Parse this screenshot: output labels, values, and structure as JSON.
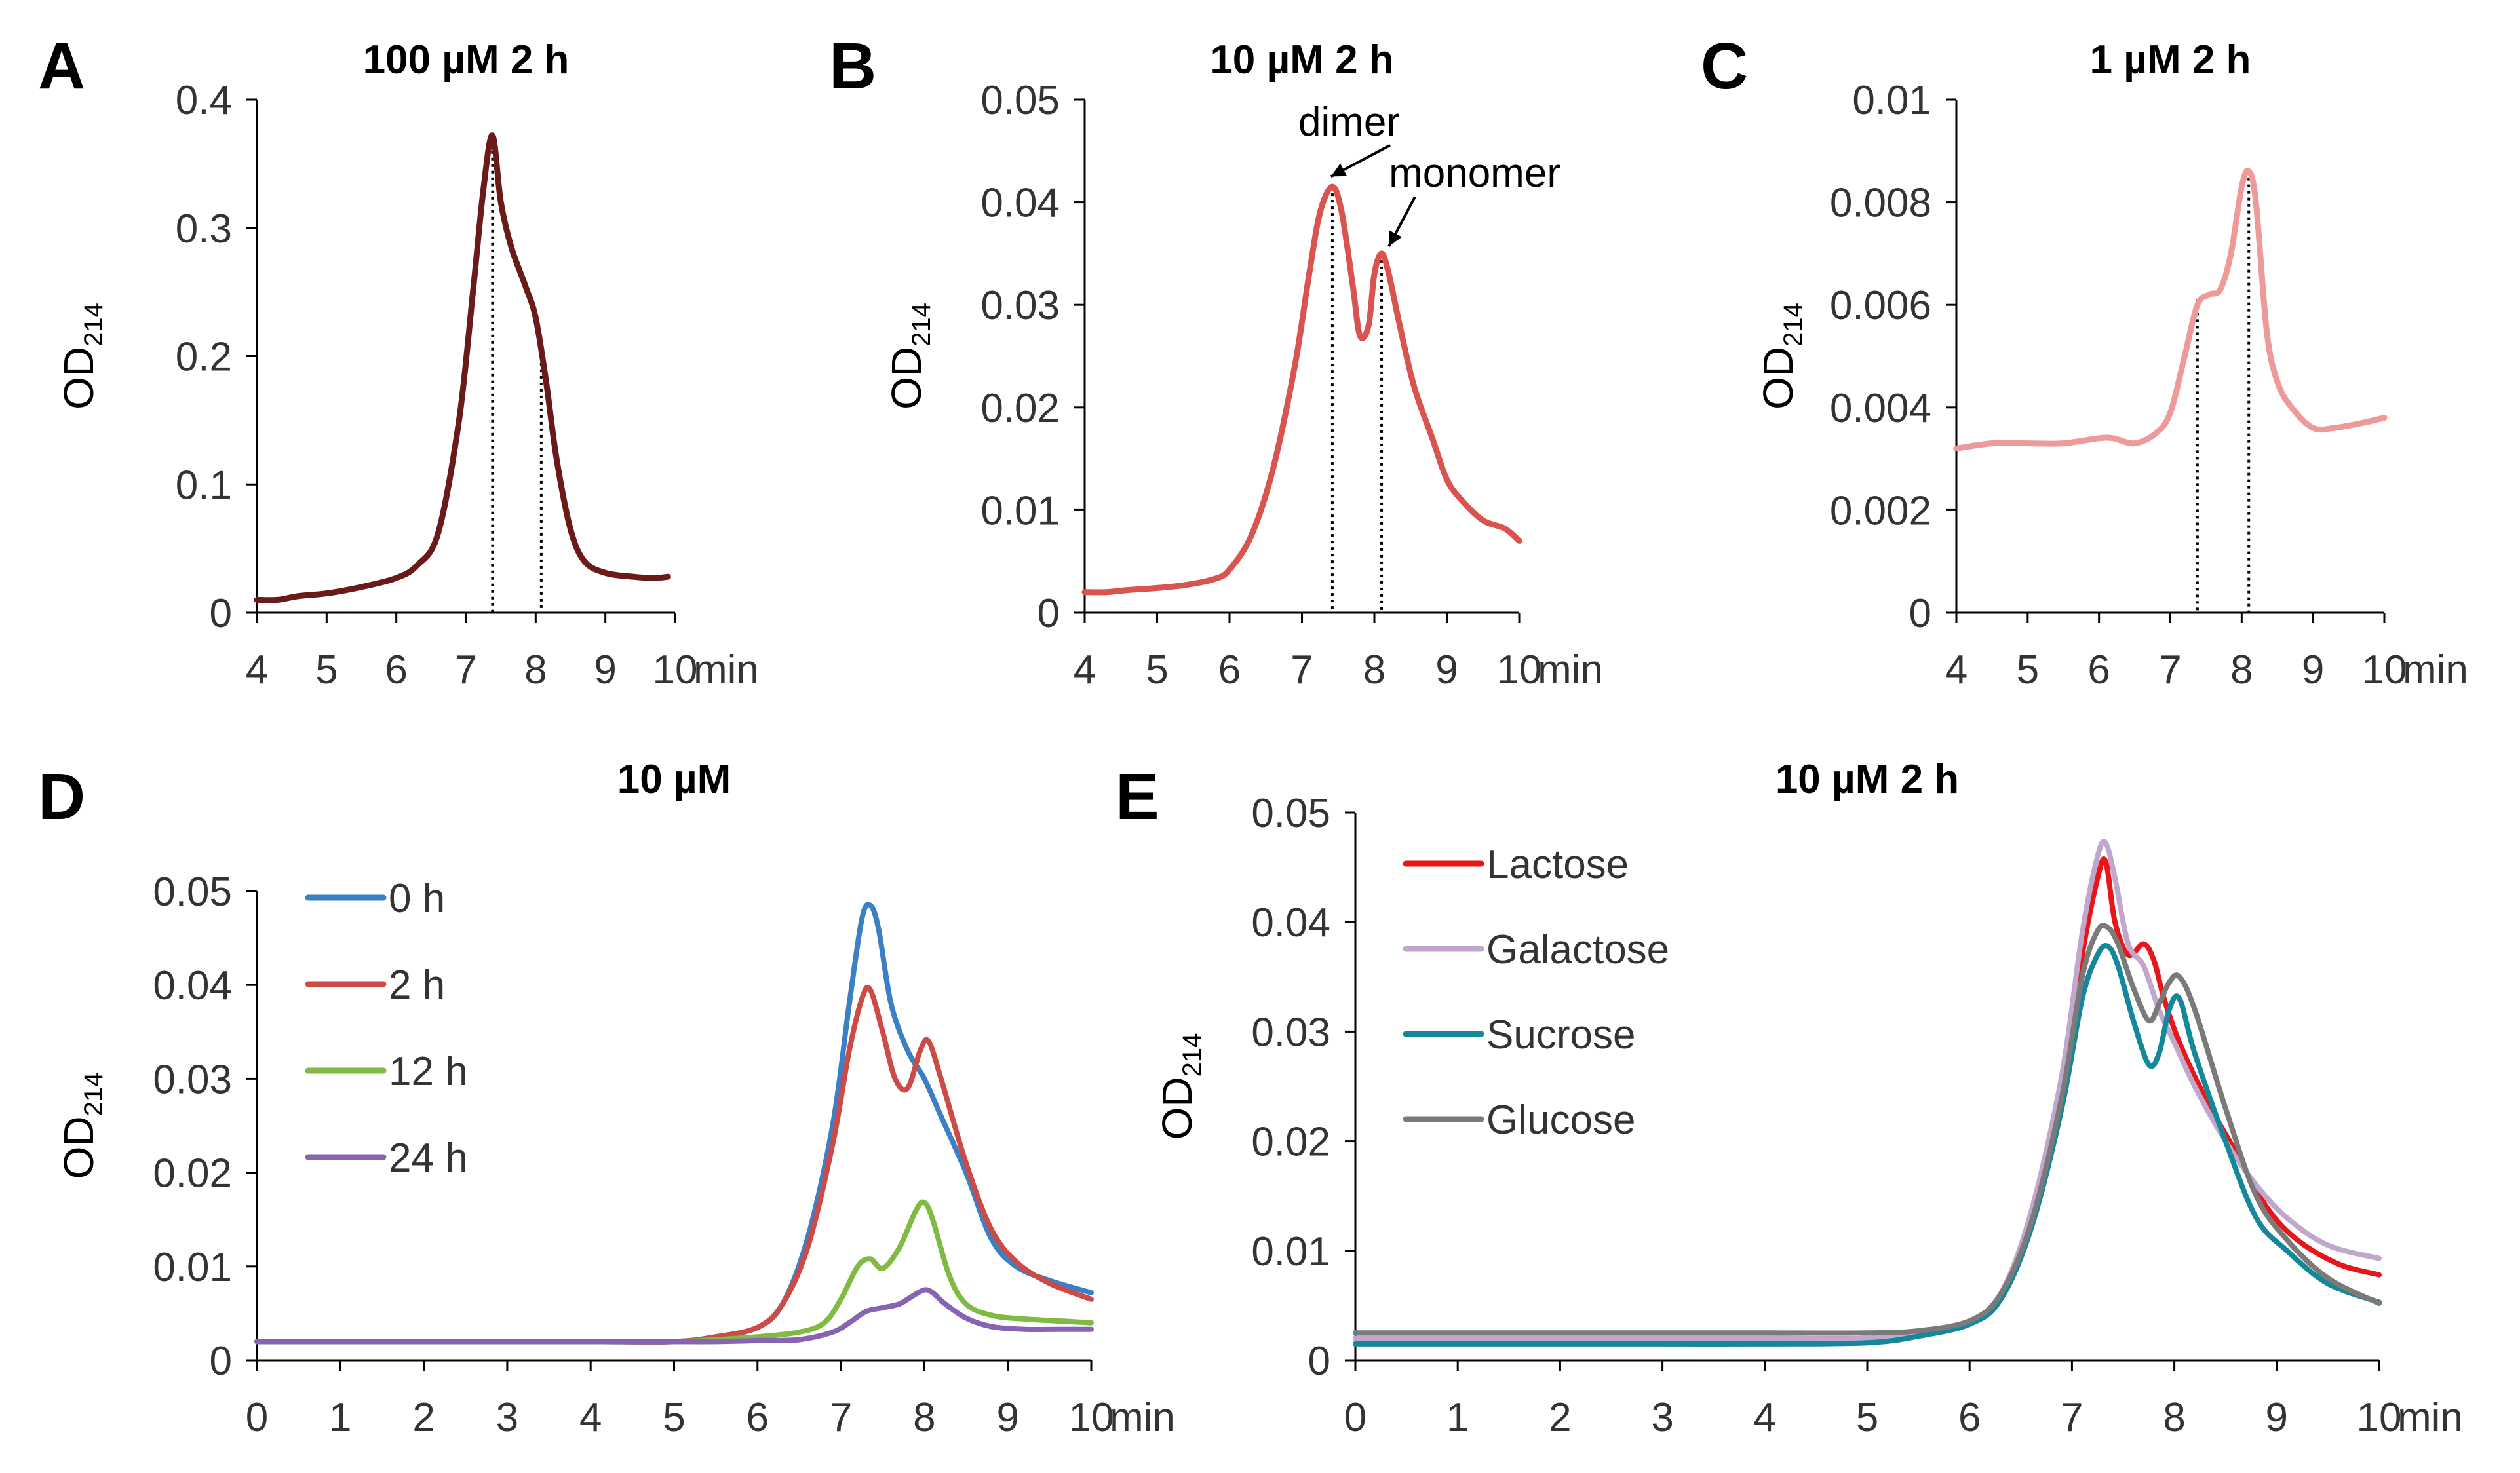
{
  "chart_data": [
    {
      "id": "A",
      "panel_label": "A",
      "type": "line",
      "title": "100 µM 2 h",
      "xlabel": "min",
      "ylabel_main": "OD",
      "ylabel_sub": "214",
      "xlim": [
        4,
        10
      ],
      "ylim": [
        0,
        0.4
      ],
      "xticks": [
        "4",
        "5",
        "6",
        "7",
        "8",
        "9",
        "10"
      ],
      "yticks": [
        "0",
        "0.1",
        "0.2",
        "0.3",
        "0.4"
      ],
      "ytick_values": [
        0,
        0.1,
        0.2,
        0.3,
        0.4
      ],
      "markers": [
        {
          "x": 7.38,
          "y": 0.37
        },
        {
          "x": 8.08,
          "y": 0.21
        }
      ],
      "annotations": [],
      "legend": false,
      "series": [
        {
          "name": "100 µM 2 h",
          "color": "#6b1a1a",
          "x": [
            4.0,
            4.3,
            4.6,
            5.0,
            5.5,
            6.0,
            6.3,
            6.6,
            6.9,
            7.1,
            7.25,
            7.38,
            7.5,
            7.65,
            7.85,
            8.0,
            8.15,
            8.3,
            8.5,
            8.7,
            9.0,
            9.4,
            9.7,
            9.9
          ],
          "y": [
            0.01,
            0.01,
            0.013,
            0.015,
            0.02,
            0.027,
            0.037,
            0.062,
            0.15,
            0.25,
            0.33,
            0.372,
            0.32,
            0.285,
            0.255,
            0.23,
            0.18,
            0.12,
            0.065,
            0.04,
            0.031,
            0.028,
            0.027,
            0.028
          ]
        }
      ]
    },
    {
      "id": "B",
      "panel_label": "B",
      "type": "line",
      "title": "10 µM 2 h",
      "xlabel": "min",
      "ylabel_main": "OD",
      "ylabel_sub": "214",
      "xlim": [
        4,
        10
      ],
      "ylim": [
        0,
        0.05
      ],
      "xticks": [
        "4",
        "5",
        "6",
        "7",
        "8",
        "9",
        "10"
      ],
      "yticks": [
        "0",
        "0.01",
        "0.02",
        "0.03",
        "0.04",
        "0.05"
      ],
      "ytick_values": [
        0,
        0.01,
        0.02,
        0.03,
        0.04,
        0.05
      ],
      "markers": [
        {
          "x": 7.42,
          "y": 0.0415
        },
        {
          "x": 8.1,
          "y": 0.035
        }
      ],
      "annotations": [
        {
          "text": "dimer",
          "tx": 6.95,
          "ty": 0.0465,
          "px": 7.4,
          "py": 0.0425
        },
        {
          "text": "monomer",
          "tx": 8.2,
          "ty": 0.0415,
          "px": 8.2,
          "py": 0.0357
        }
      ],
      "legend": false,
      "series": [
        {
          "name": "10 µM 2 h",
          "color": "#d9534f",
          "x": [
            4.0,
            4.3,
            4.6,
            5.0,
            5.4,
            5.8,
            6.0,
            6.3,
            6.6,
            6.9,
            7.1,
            7.25,
            7.42,
            7.55,
            7.7,
            7.8,
            7.92,
            8.0,
            8.1,
            8.2,
            8.35,
            8.55,
            8.8,
            9.0,
            9.2,
            9.5,
            9.8,
            10.0
          ],
          "y": [
            0.002,
            0.002,
            0.0022,
            0.0024,
            0.0027,
            0.0033,
            0.0042,
            0.0075,
            0.014,
            0.024,
            0.033,
            0.039,
            0.0415,
            0.039,
            0.032,
            0.027,
            0.028,
            0.033,
            0.035,
            0.033,
            0.028,
            0.022,
            0.017,
            0.013,
            0.011,
            0.009,
            0.0082,
            0.007
          ]
        }
      ]
    },
    {
      "id": "C",
      "panel_label": "C",
      "type": "line",
      "title": "1 µM 2 h",
      "xlabel": "min",
      "ylabel_main": "OD",
      "ylabel_sub": "214",
      "xlim": [
        4,
        10
      ],
      "ylim": [
        0,
        0.01
      ],
      "xticks": [
        "4",
        "5",
        "6",
        "7",
        "8",
        "9",
        "10"
      ],
      "yticks": [
        "0",
        "0.002",
        "0.004",
        "0.006",
        "0.008",
        "0.01"
      ],
      "ytick_values": [
        0,
        0.002,
        0.004,
        0.006,
        0.008,
        0.01
      ],
      "markers": [
        {
          "x": 7.38,
          "y": 0.0061
        },
        {
          "x": 8.1,
          "y": 0.0086
        }
      ],
      "annotations": [],
      "legend": false,
      "series": [
        {
          "name": "1 µM 2 h",
          "color": "#ee9a9a",
          "x": [
            4.0,
            4.5,
            5.0,
            5.5,
            6.0,
            6.2,
            6.5,
            6.8,
            7.0,
            7.2,
            7.38,
            7.55,
            7.7,
            7.85,
            8.0,
            8.1,
            8.2,
            8.35,
            8.5,
            8.7,
            9.0,
            9.3,
            9.7,
            10.0
          ],
          "y": [
            0.0032,
            0.0033,
            0.0033,
            0.0033,
            0.0034,
            0.0034,
            0.0033,
            0.0035,
            0.0039,
            0.005,
            0.006,
            0.0062,
            0.0063,
            0.007,
            0.0083,
            0.0086,
            0.008,
            0.0055,
            0.0045,
            0.004,
            0.0036,
            0.0036,
            0.0037,
            0.0038
          ]
        }
      ]
    },
    {
      "id": "D",
      "panel_label": "D",
      "type": "line",
      "title": "10 µM",
      "xlabel": "min",
      "ylabel_main": "OD",
      "ylabel_sub": "214",
      "xlim": [
        0,
        10
      ],
      "ylim": [
        0,
        0.05
      ],
      "xticks": [
        "0",
        "1",
        "2",
        "3",
        "4",
        "5",
        "6",
        "7",
        "8",
        "9",
        "10"
      ],
      "yticks": [
        "0",
        "0.01",
        "0.02",
        "0.03",
        "0.04",
        "0.05"
      ],
      "ytick_values": [
        0,
        0.01,
        0.02,
        0.03,
        0.04,
        0.05
      ],
      "markers": [],
      "annotations": [],
      "legend": true,
      "series": [
        {
          "name": "0 h",
          "color": "#3b7fc4",
          "x": [
            0,
            1,
            2,
            3,
            4,
            5.0,
            5.5,
            6.0,
            6.3,
            6.6,
            6.9,
            7.1,
            7.25,
            7.35,
            7.45,
            7.6,
            7.8,
            8.0,
            8.2,
            8.5,
            8.8,
            9.1,
            9.5,
            10.0
          ],
          "y": [
            0.002,
            0.002,
            0.002,
            0.002,
            0.002,
            0.002,
            0.0025,
            0.0035,
            0.006,
            0.013,
            0.025,
            0.038,
            0.047,
            0.0485,
            0.046,
            0.038,
            0.033,
            0.03,
            0.026,
            0.02,
            0.013,
            0.01,
            0.0085,
            0.0072
          ]
        },
        {
          "name": "2 h",
          "color": "#cc4b47",
          "x": [
            0,
            1,
            2,
            3,
            4,
            5.0,
            5.5,
            6.0,
            6.3,
            6.6,
            6.9,
            7.1,
            7.25,
            7.35,
            7.5,
            7.65,
            7.8,
            7.95,
            8.05,
            8.2,
            8.5,
            8.8,
            9.1,
            9.5,
            10.0
          ],
          "y": [
            0.002,
            0.002,
            0.002,
            0.002,
            0.002,
            0.002,
            0.0025,
            0.0035,
            0.006,
            0.012,
            0.023,
            0.033,
            0.0385,
            0.0395,
            0.035,
            0.03,
            0.029,
            0.033,
            0.034,
            0.03,
            0.021,
            0.014,
            0.0105,
            0.0082,
            0.0065
          ]
        },
        {
          "name": "12 h",
          "color": "#7fba42",
          "x": [
            0,
            1,
            2,
            3,
            4,
            5.0,
            5.5,
            6.0,
            6.5,
            6.8,
            7.0,
            7.2,
            7.35,
            7.5,
            7.7,
            7.9,
            8.0,
            8.1,
            8.3,
            8.5,
            8.8,
            9.2,
            9.6,
            10.0
          ],
          "y": [
            0.002,
            0.002,
            0.002,
            0.002,
            0.002,
            0.002,
            0.0022,
            0.0025,
            0.003,
            0.004,
            0.0065,
            0.01,
            0.0108,
            0.0098,
            0.012,
            0.016,
            0.0168,
            0.015,
            0.009,
            0.006,
            0.0048,
            0.0044,
            0.0042,
            0.004
          ]
        },
        {
          "name": "24 h",
          "color": "#8764b2",
          "x": [
            0,
            1,
            2,
            3,
            4,
            5.0,
            5.5,
            6.0,
            6.5,
            6.9,
            7.1,
            7.3,
            7.5,
            7.7,
            7.85,
            8.0,
            8.1,
            8.25,
            8.5,
            8.8,
            9.2,
            9.6,
            10.0
          ],
          "y": [
            0.002,
            0.002,
            0.002,
            0.002,
            0.002,
            0.002,
            0.002,
            0.0021,
            0.0022,
            0.003,
            0.004,
            0.0052,
            0.0056,
            0.006,
            0.0068,
            0.0075,
            0.0072,
            0.006,
            0.0045,
            0.0036,
            0.0033,
            0.0033,
            0.0033
          ]
        }
      ]
    },
    {
      "id": "E",
      "panel_label": "E",
      "type": "line",
      "title": "10 µM 2 h",
      "xlabel": "min",
      "ylabel_main": "OD",
      "ylabel_sub": "214",
      "xlim": [
        0,
        10
      ],
      "ylim": [
        0,
        0.05
      ],
      "xticks": [
        "0",
        "1",
        "2",
        "3",
        "4",
        "5",
        "6",
        "7",
        "8",
        "9",
        "10"
      ],
      "yticks": [
        "0",
        "0.01",
        "0.02",
        "0.03",
        "0.04",
        "0.05"
      ],
      "ytick_values": [
        0,
        0.01,
        0.02,
        0.03,
        0.04,
        0.05
      ],
      "markers": [],
      "annotations": [],
      "legend": true,
      "series": [
        {
          "name": "Lactose",
          "color": "#e8161b",
          "x": [
            0,
            1,
            2,
            3,
            4,
            5.0,
            5.5,
            6.0,
            6.3,
            6.6,
            6.9,
            7.1,
            7.25,
            7.33,
            7.42,
            7.55,
            7.7,
            7.8,
            7.9,
            8.05,
            8.3,
            8.6,
            8.9,
            9.2,
            9.6,
            10.0
          ],
          "y": [
            0.002,
            0.002,
            0.002,
            0.002,
            0.002,
            0.002,
            0.0025,
            0.0035,
            0.006,
            0.013,
            0.025,
            0.037,
            0.044,
            0.0455,
            0.04,
            0.037,
            0.038,
            0.0365,
            0.033,
            0.029,
            0.024,
            0.019,
            0.014,
            0.011,
            0.0088,
            0.0078
          ]
        },
        {
          "name": "Galactose",
          "color": "#c1a7cc",
          "x": [
            0,
            1,
            2,
            3,
            4,
            5.0,
            5.5,
            6.0,
            6.3,
            6.6,
            6.9,
            7.1,
            7.25,
            7.33,
            7.42,
            7.55,
            7.7,
            7.85,
            8.0,
            8.2,
            8.5,
            8.8,
            9.1,
            9.5,
            10.0
          ],
          "y": [
            0.002,
            0.002,
            0.002,
            0.002,
            0.002,
            0.002,
            0.0025,
            0.0035,
            0.006,
            0.0135,
            0.026,
            0.039,
            0.046,
            0.0472,
            0.044,
            0.038,
            0.036,
            0.032,
            0.029,
            0.025,
            0.02,
            0.016,
            0.013,
            0.0105,
            0.0093
          ]
        },
        {
          "name": "Sucrose",
          "color": "#15879a",
          "x": [
            0,
            1,
            2,
            3,
            4,
            5.0,
            5.5,
            6.0,
            6.3,
            6.6,
            6.9,
            7.1,
            7.25,
            7.35,
            7.45,
            7.6,
            7.75,
            7.85,
            7.95,
            8.05,
            8.2,
            8.5,
            8.8,
            9.1,
            9.5,
            10.0
          ],
          "y": [
            0.0015,
            0.0015,
            0.0015,
            0.0015,
            0.0015,
            0.0016,
            0.0022,
            0.0033,
            0.0055,
            0.012,
            0.023,
            0.033,
            0.037,
            0.0378,
            0.036,
            0.031,
            0.027,
            0.028,
            0.032,
            0.033,
            0.028,
            0.02,
            0.013,
            0.01,
            0.007,
            0.0053
          ]
        },
        {
          "name": "Glucose",
          "color": "#7a7a7a",
          "x": [
            0,
            1,
            2,
            3,
            4,
            5.0,
            5.5,
            6.0,
            6.3,
            6.6,
            6.9,
            7.1,
            7.25,
            7.35,
            7.45,
            7.6,
            7.75,
            7.85,
            7.95,
            8.05,
            8.2,
            8.5,
            8.8,
            9.1,
            9.5,
            10.0
          ],
          "y": [
            0.0025,
            0.0025,
            0.0025,
            0.0025,
            0.0025,
            0.0025,
            0.0027,
            0.0036,
            0.006,
            0.0125,
            0.024,
            0.035,
            0.0392,
            0.0395,
            0.038,
            0.034,
            0.031,
            0.0325,
            0.0345,
            0.035,
            0.032,
            0.023,
            0.015,
            0.011,
            0.0075,
            0.0052
          ]
        }
      ]
    }
  ]
}
